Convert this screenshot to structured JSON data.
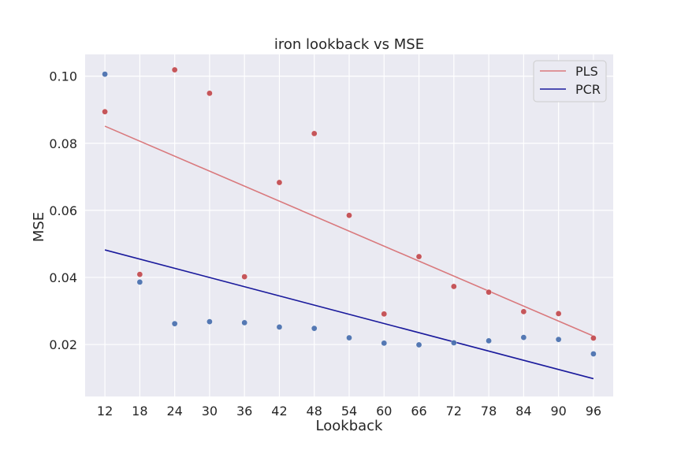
{
  "chart_data": {
    "type": "scatter",
    "title": "iron lookback vs MSE",
    "xlabel": "Lookback",
    "ylabel": "MSE",
    "x_ticks": [
      12,
      18,
      24,
      30,
      36,
      42,
      48,
      54,
      60,
      66,
      72,
      78,
      84,
      90,
      96
    ],
    "y_ticks": [
      0.02,
      0.04,
      0.06,
      0.08,
      0.1
    ],
    "y_tick_labels": [
      "0.02",
      "0.04",
      "0.06",
      "0.08",
      "0.10"
    ],
    "xlim": [
      8.6,
      99.4
    ],
    "ylim": [
      0.0045,
      0.1065
    ],
    "grid": true,
    "legend_position": "top-right",
    "background": "#eaeaf2",
    "series": [
      {
        "name": "PLS",
        "kind": "scatter",
        "color": "#c44e52",
        "x": [
          12,
          18,
          24,
          30,
          36,
          42,
          48,
          54,
          60,
          66,
          72,
          78,
          84,
          90,
          96
        ],
        "y": [
          0.0894,
          0.0409,
          0.1019,
          0.0949,
          0.0402,
          0.0683,
          0.0829,
          0.0585,
          0.0291,
          0.0462,
          0.0373,
          0.0356,
          0.0298,
          0.0292,
          0.0219
        ]
      },
      {
        "name": "PCR",
        "kind": "scatter",
        "color": "#4c72b0",
        "x": [
          12,
          18,
          24,
          30,
          36,
          42,
          48,
          54,
          60,
          66,
          72,
          78,
          84,
          90,
          96
        ],
        "y": [
          0.1006,
          0.0386,
          0.0262,
          0.0268,
          0.0265,
          0.0252,
          0.0248,
          0.022,
          0.0204,
          0.0199,
          0.0205,
          0.0211,
          0.0221,
          0.0215,
          0.0172
        ]
      }
    ],
    "lines": [
      {
        "name": "PLS",
        "color": "#d9797d",
        "x": [
          12,
          96
        ],
        "y": [
          0.0851,
          0.0225
        ]
      },
      {
        "name": "PCR",
        "color": "#1a1a9c",
        "x": [
          12,
          96
        ],
        "y": [
          0.0482,
          0.0098
        ]
      }
    ],
    "legend": [
      {
        "label": "PLS",
        "color": "#d9797d"
      },
      {
        "label": "PCR",
        "color": "#1a1a9c"
      }
    ]
  }
}
